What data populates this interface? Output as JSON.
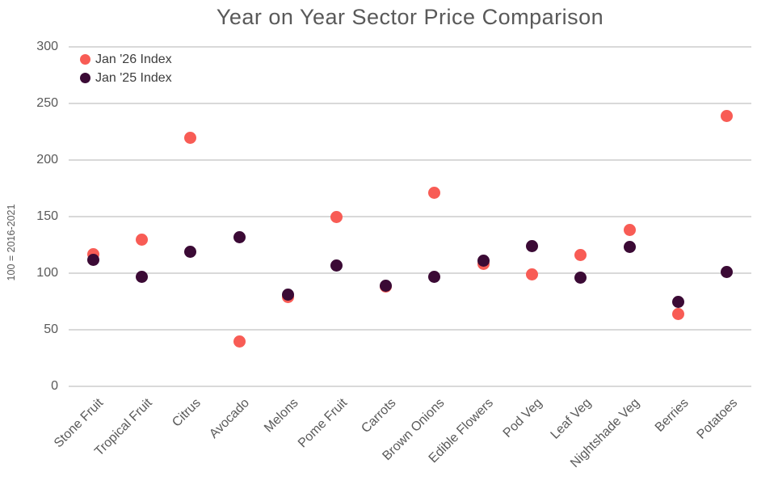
{
  "chart": {
    "title": "Year on Year Sector Price Comparison",
    "y_axis_title": "100 = 2016-2021"
  },
  "chart_data": {
    "type": "scatter",
    "title": "Year on Year Sector Price Comparison",
    "xlabel": "",
    "ylabel": "100 = 2016-2021",
    "ylim": [
      0,
      300
    ],
    "yticks": [
      0,
      50,
      100,
      150,
      200,
      250,
      300
    ],
    "grid": true,
    "legend_position": "top-left",
    "categories": [
      "Stone Fruit",
      "Tropical Fruit",
      "Citrus",
      "Avocado",
      "Melons",
      "Pome Fruit",
      "Carrots",
      "Brown Onions",
      "Edible Flowers",
      "Pod Veg",
      "Leaf Veg",
      "Nightshade Veg",
      "Berries",
      "Potatoes"
    ],
    "series": [
      {
        "name": "Jan '26 Index",
        "color": "#f85c55",
        "values": [
          117,
          130,
          220,
          40,
          79,
          150,
          88,
          171,
          108,
          99,
          116,
          138,
          64,
          239
        ]
      },
      {
        "name": "Jan '25 Index",
        "color": "#3b0a35",
        "values": [
          112,
          97,
          119,
          132,
          81,
          107,
          89,
          97,
          111,
          124,
          96,
          123,
          75,
          101
        ]
      }
    ]
  },
  "colors": {
    "background": "#ffffff",
    "gridline": "#d9d9d9",
    "axis_text": "#595959",
    "title_text": "#595959",
    "legend_text": "#3d3d3d"
  }
}
